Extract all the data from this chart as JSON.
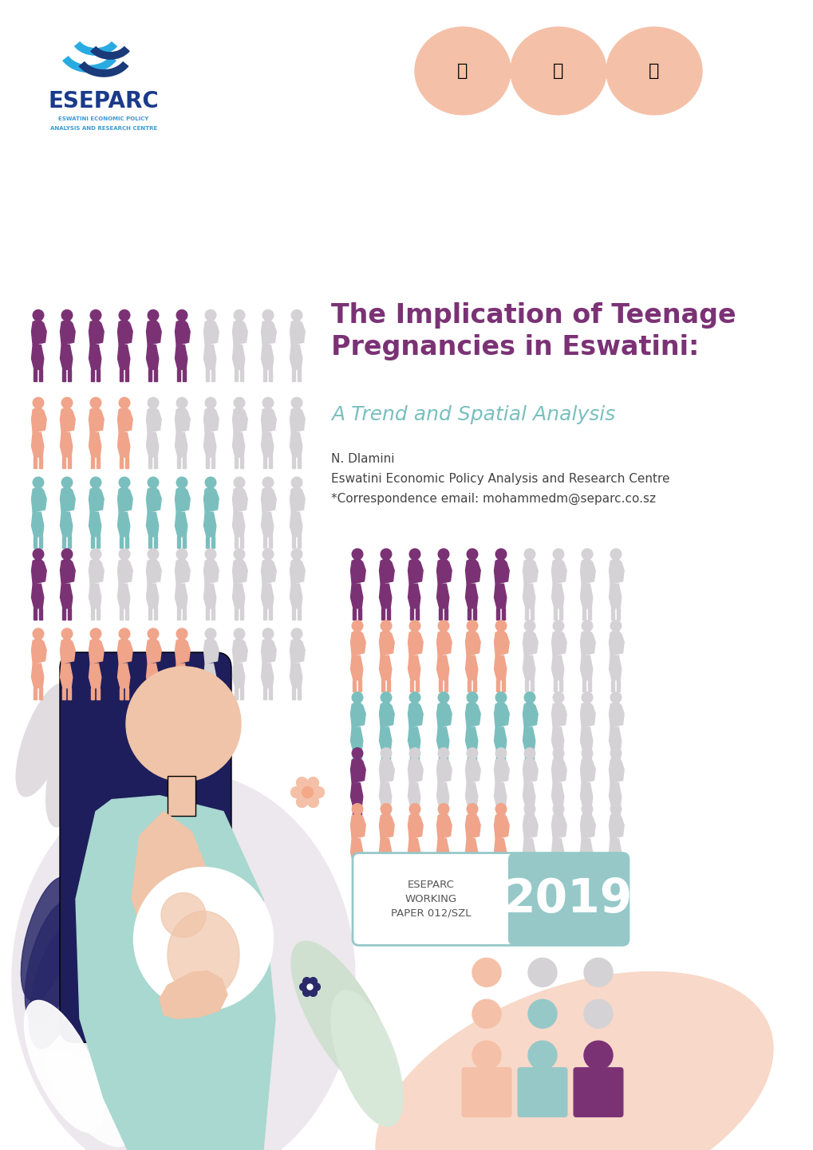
{
  "bg_header": "#e6e6e6",
  "bg_main": "#ffffff",
  "title_line1": "The Implication of Teenage",
  "title_line2": "Pregnancies in Eswatini:",
  "title_subtitle": "A Trend and Spatial Analysis",
  "title_color": "#7b3275",
  "subtitle_color": "#7abfbe",
  "author_line1": "N. Dlamini",
  "author_line2": "Eswatini Economic Policy Analysis and Research Centre",
  "author_line3": "*Correspondence email: mohammedm@separc.co.sz",
  "eseparc_text": "ESEPARC",
  "eseparc_sub1": "ESWATINI ECONOMIC POLICY",
  "eseparc_sub2": "ANALYSIS AND RESEARCH CENTRE",
  "working_paper_line1": "ESEPARC",
  "working_paper_line2": "WORKING",
  "working_paper_line3": "PAPER 012/SZL",
  "year": "2019",
  "color_purple": "#7b3275",
  "color_salmon": "#f0a48a",
  "color_teal": "#7abfbe",
  "color_light_gray": "#d5d2d5",
  "color_wp_teal": "#96c8c8",
  "icon_bg_salmon": "#f4c0a8",
  "icon_bg_teal": "#96c8c8",
  "icon_bg_purple": "#7b3275",
  "dark_navy": "#1e1e5c",
  "skin_color": "#f0c4a8",
  "mint_color": "#a8d8d0",
  "light_purple_bg": "#ede8ed",
  "light_salmon_bg": "#f8d8c8",
  "left_rows": [
    {
      "color": "#7b3275",
      "n_colored": 6,
      "n_gray": 4,
      "total": 10
    },
    {
      "color": "#f0a48a",
      "n_colored": 4,
      "n_gray": 6,
      "total": 10
    },
    {
      "color": "#7abfbe",
      "n_colored": 7,
      "n_gray": 3,
      "total": 10
    },
    {
      "color": "#7b3275",
      "n_colored": 2,
      "n_gray": 8,
      "total": 10
    },
    {
      "color": "#f0a48a",
      "n_colored": 6,
      "n_gray": 4,
      "total": 10
    }
  ],
  "right_rows": [
    {
      "color": "#7b3275",
      "n_colored": 6,
      "n_gray": 4,
      "total": 10
    },
    {
      "color": "#f0a48a",
      "n_colored": 6,
      "n_gray": 4,
      "total": 10
    },
    {
      "color": "#7abfbe",
      "n_colored": 7,
      "n_gray": 3,
      "total": 10
    },
    {
      "color": "#7b3275",
      "n_colored": 1,
      "n_gray": 9,
      "total": 10
    },
    {
      "color": "#f0a48a",
      "n_colored": 6,
      "n_gray": 4,
      "total": 10
    }
  ],
  "dot_grid": [
    [
      "#f4c0a8",
      "#d5d2d5",
      "#d5d2d5"
    ],
    [
      "#f4c0a8",
      "#d5d2d5",
      "#d5d2d5"
    ],
    [
      "#f4c0a8",
      "#96c8c8",
      "#d5d2d5"
    ],
    [
      "#f4c0a8",
      "#96c8c8",
      "#7b3275"
    ]
  ]
}
